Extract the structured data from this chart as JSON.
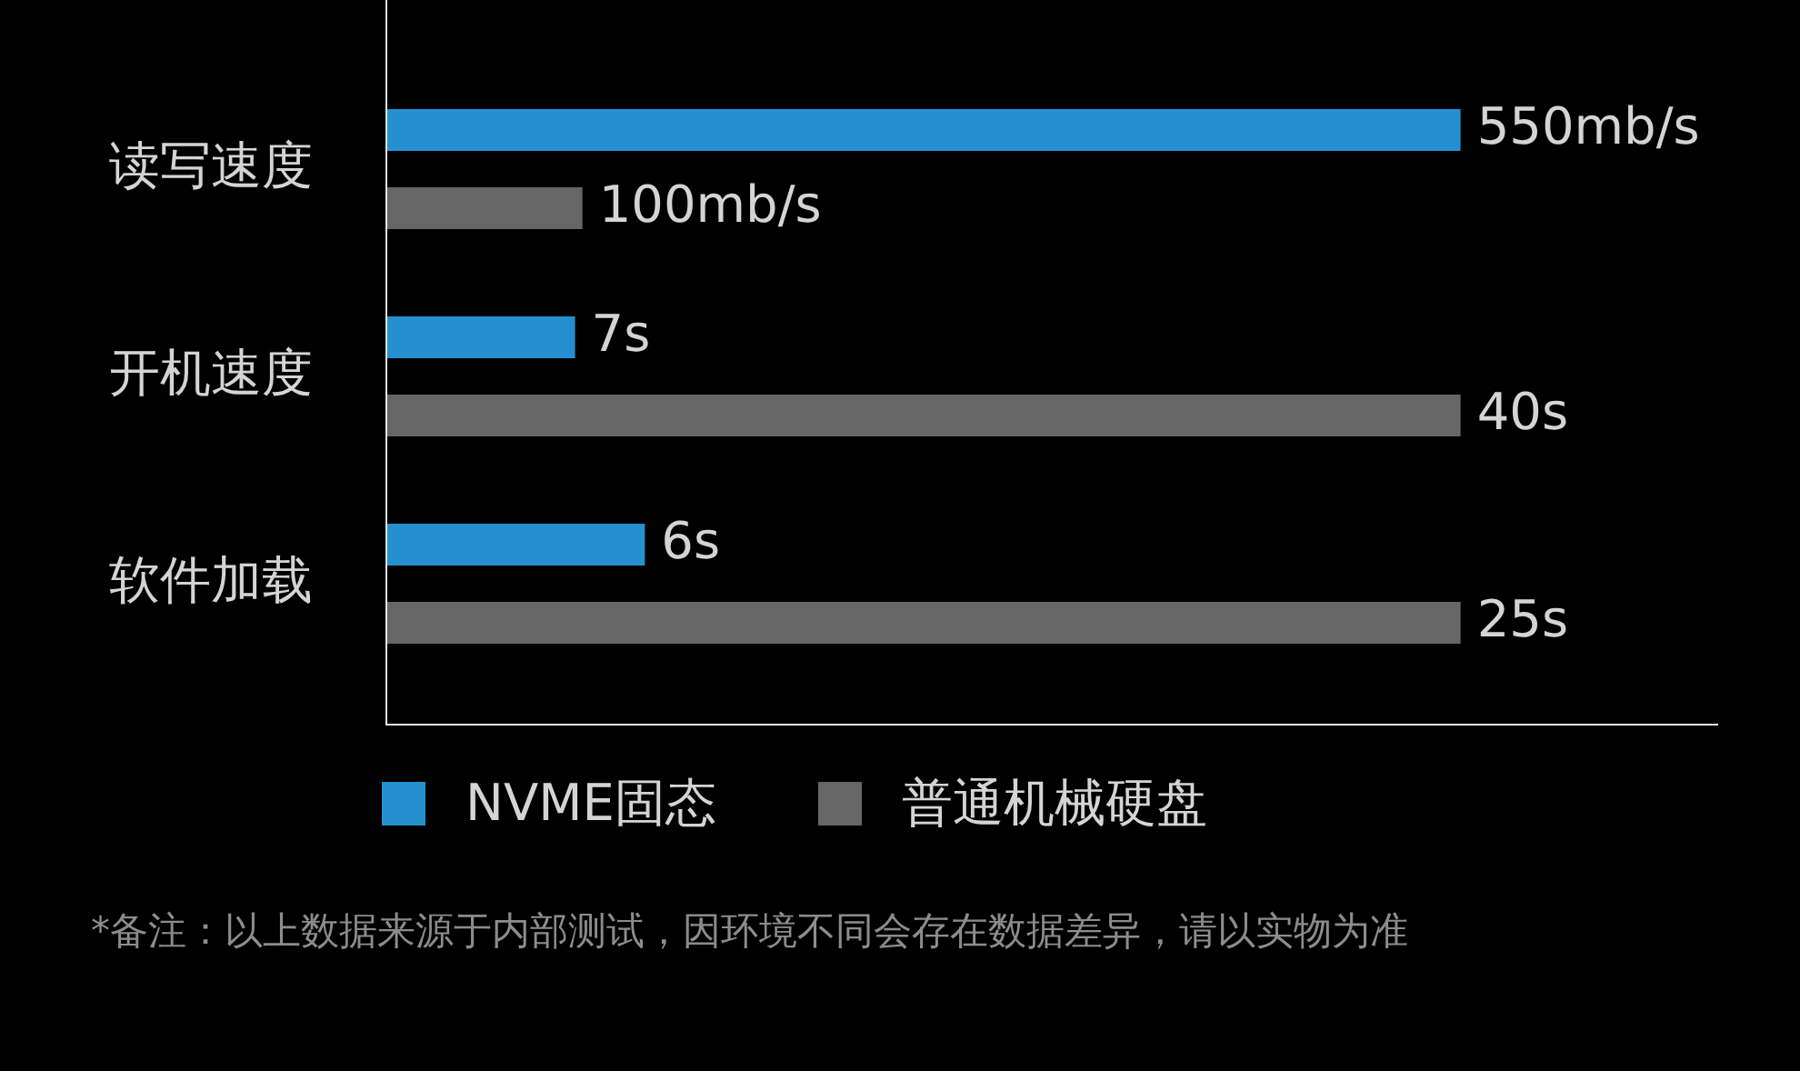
{
  "chart_data": [
    {
      "type": "bar",
      "orientation": "horizontal",
      "categories": [
        "读写速度"
      ],
      "series": [
        {
          "color": "#2590cf",
          "values": [
            550
          ],
          "value_labels": [
            "550mb/s"
          ]
        },
        {
          "color": "#666666",
          "values": [
            100
          ],
          "value_labels": [
            "100mb/s"
          ]
        }
      ]
    },
    {
      "type": "bar",
      "orientation": "horizontal",
      "categories": [
        "开机速度"
      ],
      "series": [
        {
          "color": "#2590cf",
          "values": [
            7
          ],
          "value_labels": [
            "7s"
          ]
        },
        {
          "color": "#666666",
          "values": [
            40
          ],
          "value_labels": [
            "40s"
          ]
        }
      ]
    },
    {
      "type": "bar",
      "orientation": "horizontal",
      "categories": [
        "软件加载"
      ],
      "series": [
        {
          "name": "NVME固态",
          "color": "#2590cf",
          "values": [
            6
          ],
          "value_labels": [
            "6s"
          ]
        },
        {
          "name": "普通机械硬盘",
          "color": "#666666",
          "values": [
            25
          ],
          "value_labels": [
            "25s"
          ]
        }
      ],
      "legend": "bottom",
      "annotations": [
        "*备注：以上数据来源于内部测试，因环境不同会存在数据差异，请以实物为准"
      ]
    }
  ]
}
